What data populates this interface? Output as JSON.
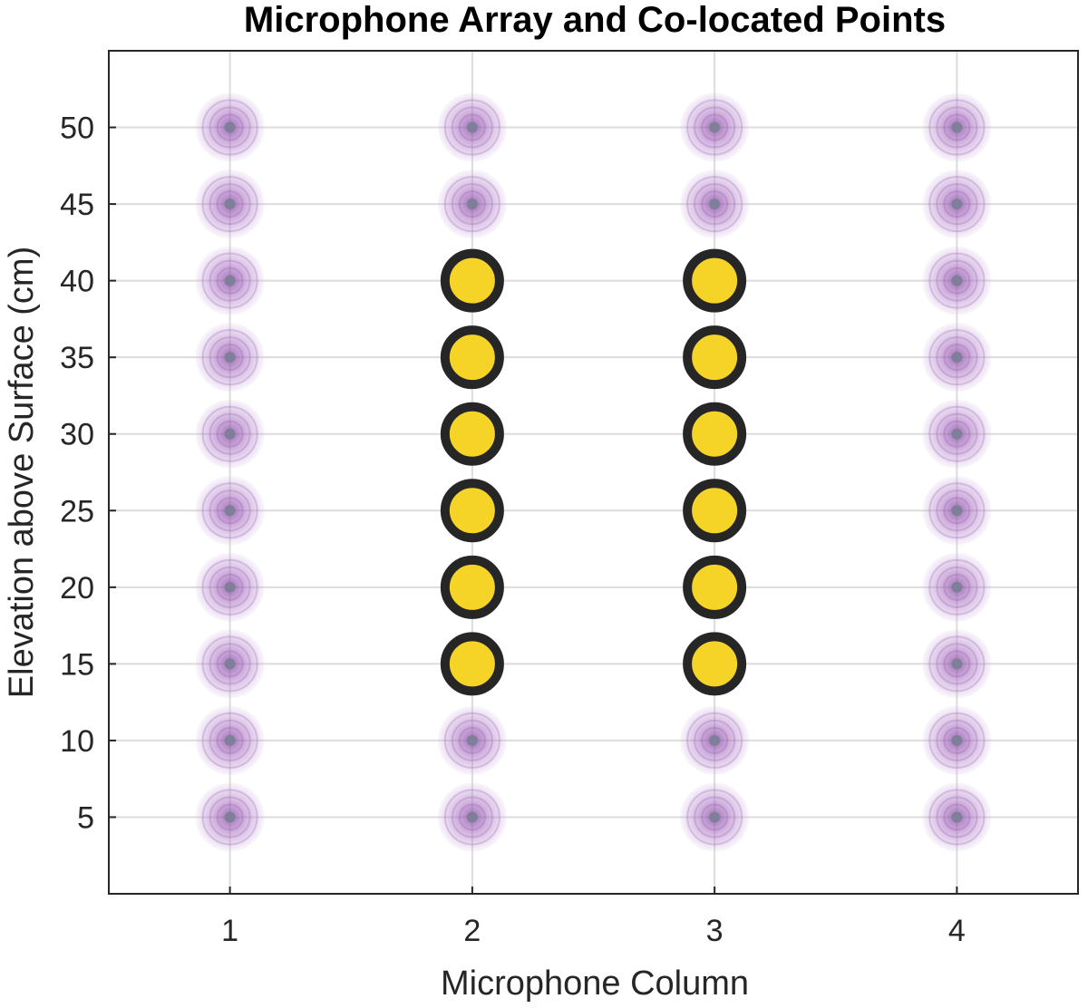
{
  "chart_data": {
    "type": "scatter",
    "title": "Microphone Array and Co-located Points",
    "xlabel": "Microphone Column",
    "ylabel": "Elevation above Surface (cm)",
    "xlim": [
      0.5,
      4.5
    ],
    "ylim": [
      0,
      55
    ],
    "xticks": [
      1,
      2,
      3,
      4
    ],
    "yticks": [
      5,
      10,
      15,
      20,
      25,
      30,
      35,
      40,
      45,
      50
    ],
    "grid": true,
    "series": [
      {
        "marker": "faded-purple-circle",
        "color": "#9b59b6",
        "points": [
          [
            1,
            5
          ],
          [
            1,
            10
          ],
          [
            1,
            15
          ],
          [
            1,
            20
          ],
          [
            1,
            25
          ],
          [
            1,
            30
          ],
          [
            1,
            35
          ],
          [
            1,
            40
          ],
          [
            1,
            45
          ],
          [
            1,
            50
          ],
          [
            2,
            5
          ],
          [
            2,
            10
          ],
          [
            2,
            45
          ],
          [
            2,
            50
          ],
          [
            3,
            5
          ],
          [
            3,
            10
          ],
          [
            3,
            45
          ],
          [
            3,
            50
          ],
          [
            4,
            5
          ],
          [
            4,
            10
          ],
          [
            4,
            15
          ],
          [
            4,
            20
          ],
          [
            4,
            25
          ],
          [
            4,
            30
          ],
          [
            4,
            35
          ],
          [
            4,
            40
          ],
          [
            4,
            45
          ],
          [
            4,
            50
          ]
        ]
      },
      {
        "marker": "yellow-circle-black-edge",
        "color": "#f5d327",
        "edge_color": "#262626",
        "points": [
          [
            2,
            15
          ],
          [
            2,
            20
          ],
          [
            2,
            25
          ],
          [
            2,
            30
          ],
          [
            2,
            35
          ],
          [
            2,
            40
          ],
          [
            3,
            15
          ],
          [
            3,
            20
          ],
          [
            3,
            25
          ],
          [
            3,
            30
          ],
          [
            3,
            35
          ],
          [
            3,
            40
          ]
        ]
      }
    ]
  }
}
